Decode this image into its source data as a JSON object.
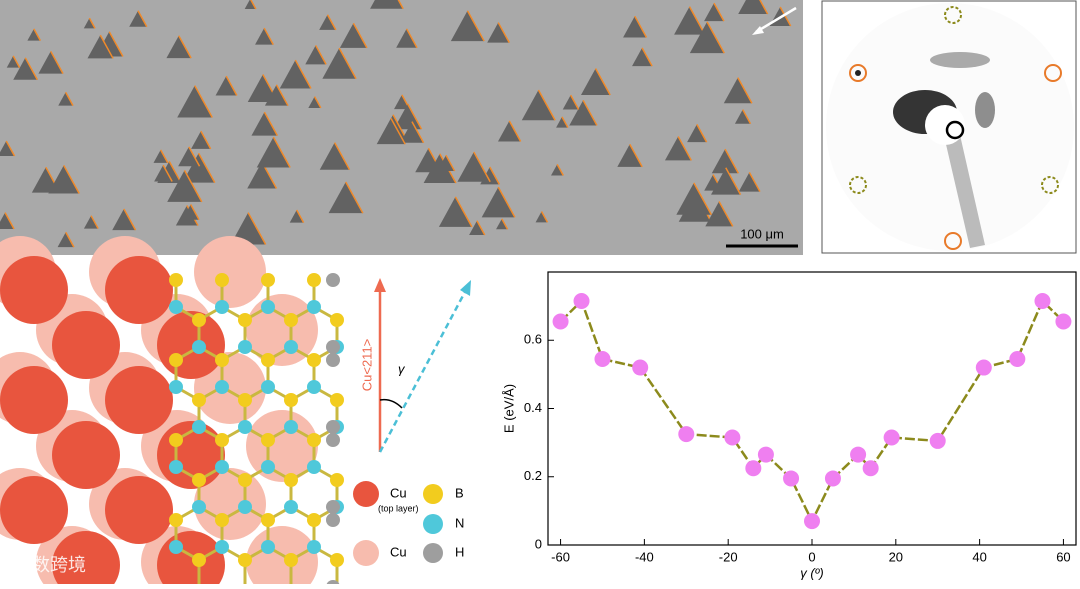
{
  "sem_image": {
    "scale_bar": "100 μm"
  },
  "structure": {
    "direction_label": "Cu<211>",
    "angle_label": "γ",
    "legend": [
      {
        "label": "Cu",
        "note": "(top layer)"
      },
      {
        "label": "B"
      },
      {
        "label": "N"
      },
      {
        "label": "Cu"
      },
      {
        "label": "H"
      }
    ]
  },
  "watermark": "大数跨境",
  "chart_data": {
    "type": "line",
    "x": [
      -60,
      -55,
      -50,
      -41,
      -30,
      -19,
      -14,
      -11,
      -5,
      0,
      5,
      11,
      14,
      19,
      30,
      41,
      49,
      55,
      60
    ],
    "series": [
      {
        "color": "#8c8a1c",
        "marker_color": "#ef7ff0",
        "values": [
          0.655,
          0.715,
          0.545,
          0.52,
          0.325,
          0.315,
          0.225,
          0.265,
          0.195,
          0.07,
          0.195,
          0.265,
          0.225,
          0.315,
          0.305,
          0.52,
          0.545,
          0.715,
          0.655
        ]
      }
    ],
    "xlabel": "γ (º)",
    "ylabel": "E (eV/Å)",
    "xlim": [
      -63,
      63
    ],
    "xticks": [
      -60,
      -40,
      -20,
      0,
      20,
      40,
      60
    ],
    "ylim": [
      0,
      0.8
    ],
    "yticks": [
      0,
      0.2,
      0.4,
      0.6
    ]
  }
}
